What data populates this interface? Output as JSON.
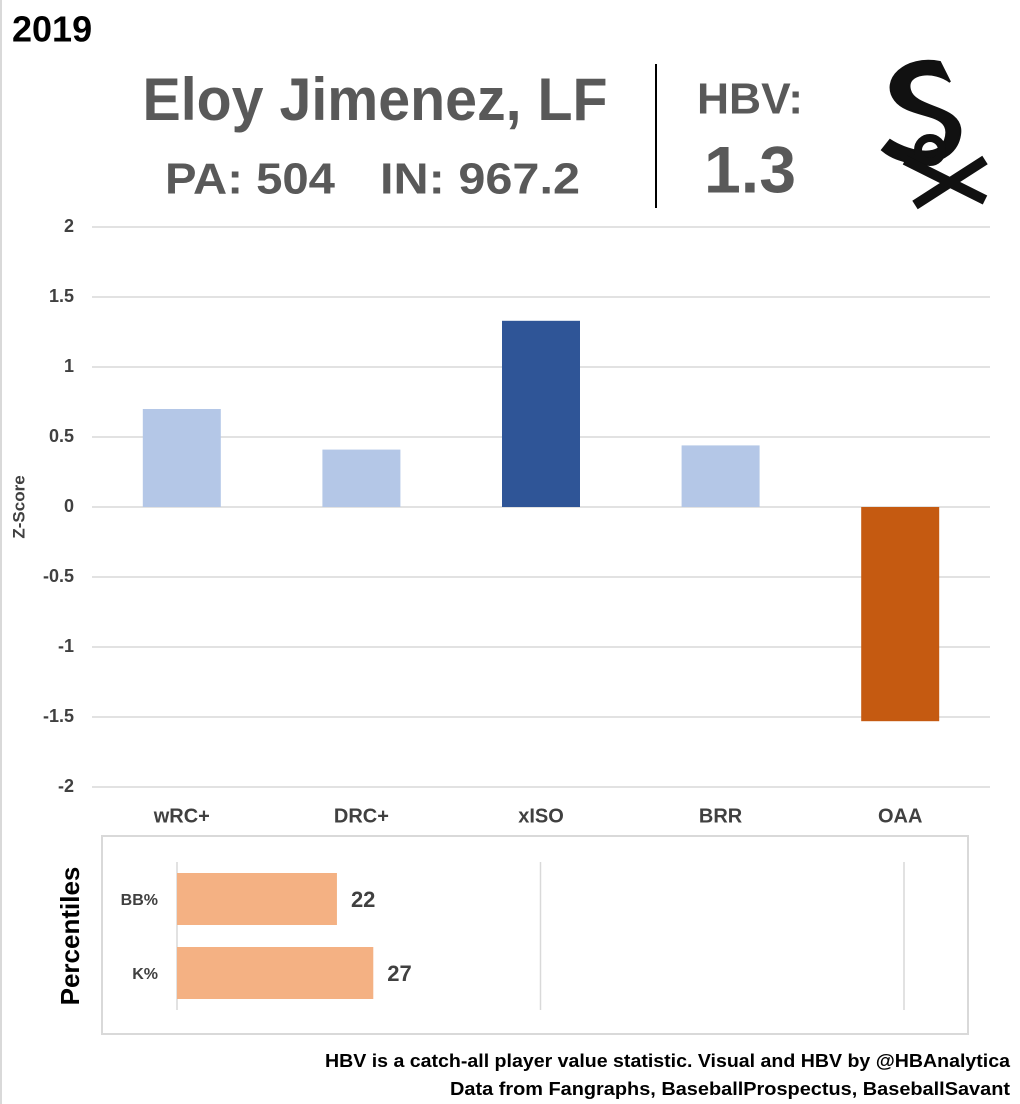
{
  "year": "2019",
  "player": "Eloy Jimenez, LF",
  "pa": "PA: 504",
  "innings": "IN: 967.2",
  "hbv_label": "HBV:",
  "hbv_value": "1.3",
  "footnote": [
    "HBV is a catch-all player value statistic. Visual and HBV by @HBAnalytica",
    "Data from Fangraphs, BaseballProspectus, BaseballSavant"
  ],
  "chart_data": [
    {
      "type": "bar",
      "y_label": "Z-Score",
      "categories": [
        "wRC+",
        "DRC+",
        "xISO",
        "BRR",
        "OAA"
      ],
      "values": [
        0.7,
        0.41,
        1.33,
        0.44,
        -1.53
      ],
      "colors": [
        "#b4c7e7",
        "#b4c7e7",
        "#2f5597",
        "#b4c7e7",
        "#c55a11"
      ],
      "ylim": [
        -2,
        2
      ],
      "yticks": [
        -2,
        -1.5,
        -1,
        -0.5,
        0,
        0.5,
        1,
        1.5,
        2
      ],
      "grid": true
    },
    {
      "type": "barh",
      "y_label": "Percentiles",
      "categories": [
        "BB%",
        "K%"
      ],
      "values": [
        22,
        27
      ],
      "color": "#f4b183",
      "xlim": [
        0,
        100
      ],
      "xticks": [
        0,
        50,
        100
      ],
      "grid": true
    }
  ]
}
